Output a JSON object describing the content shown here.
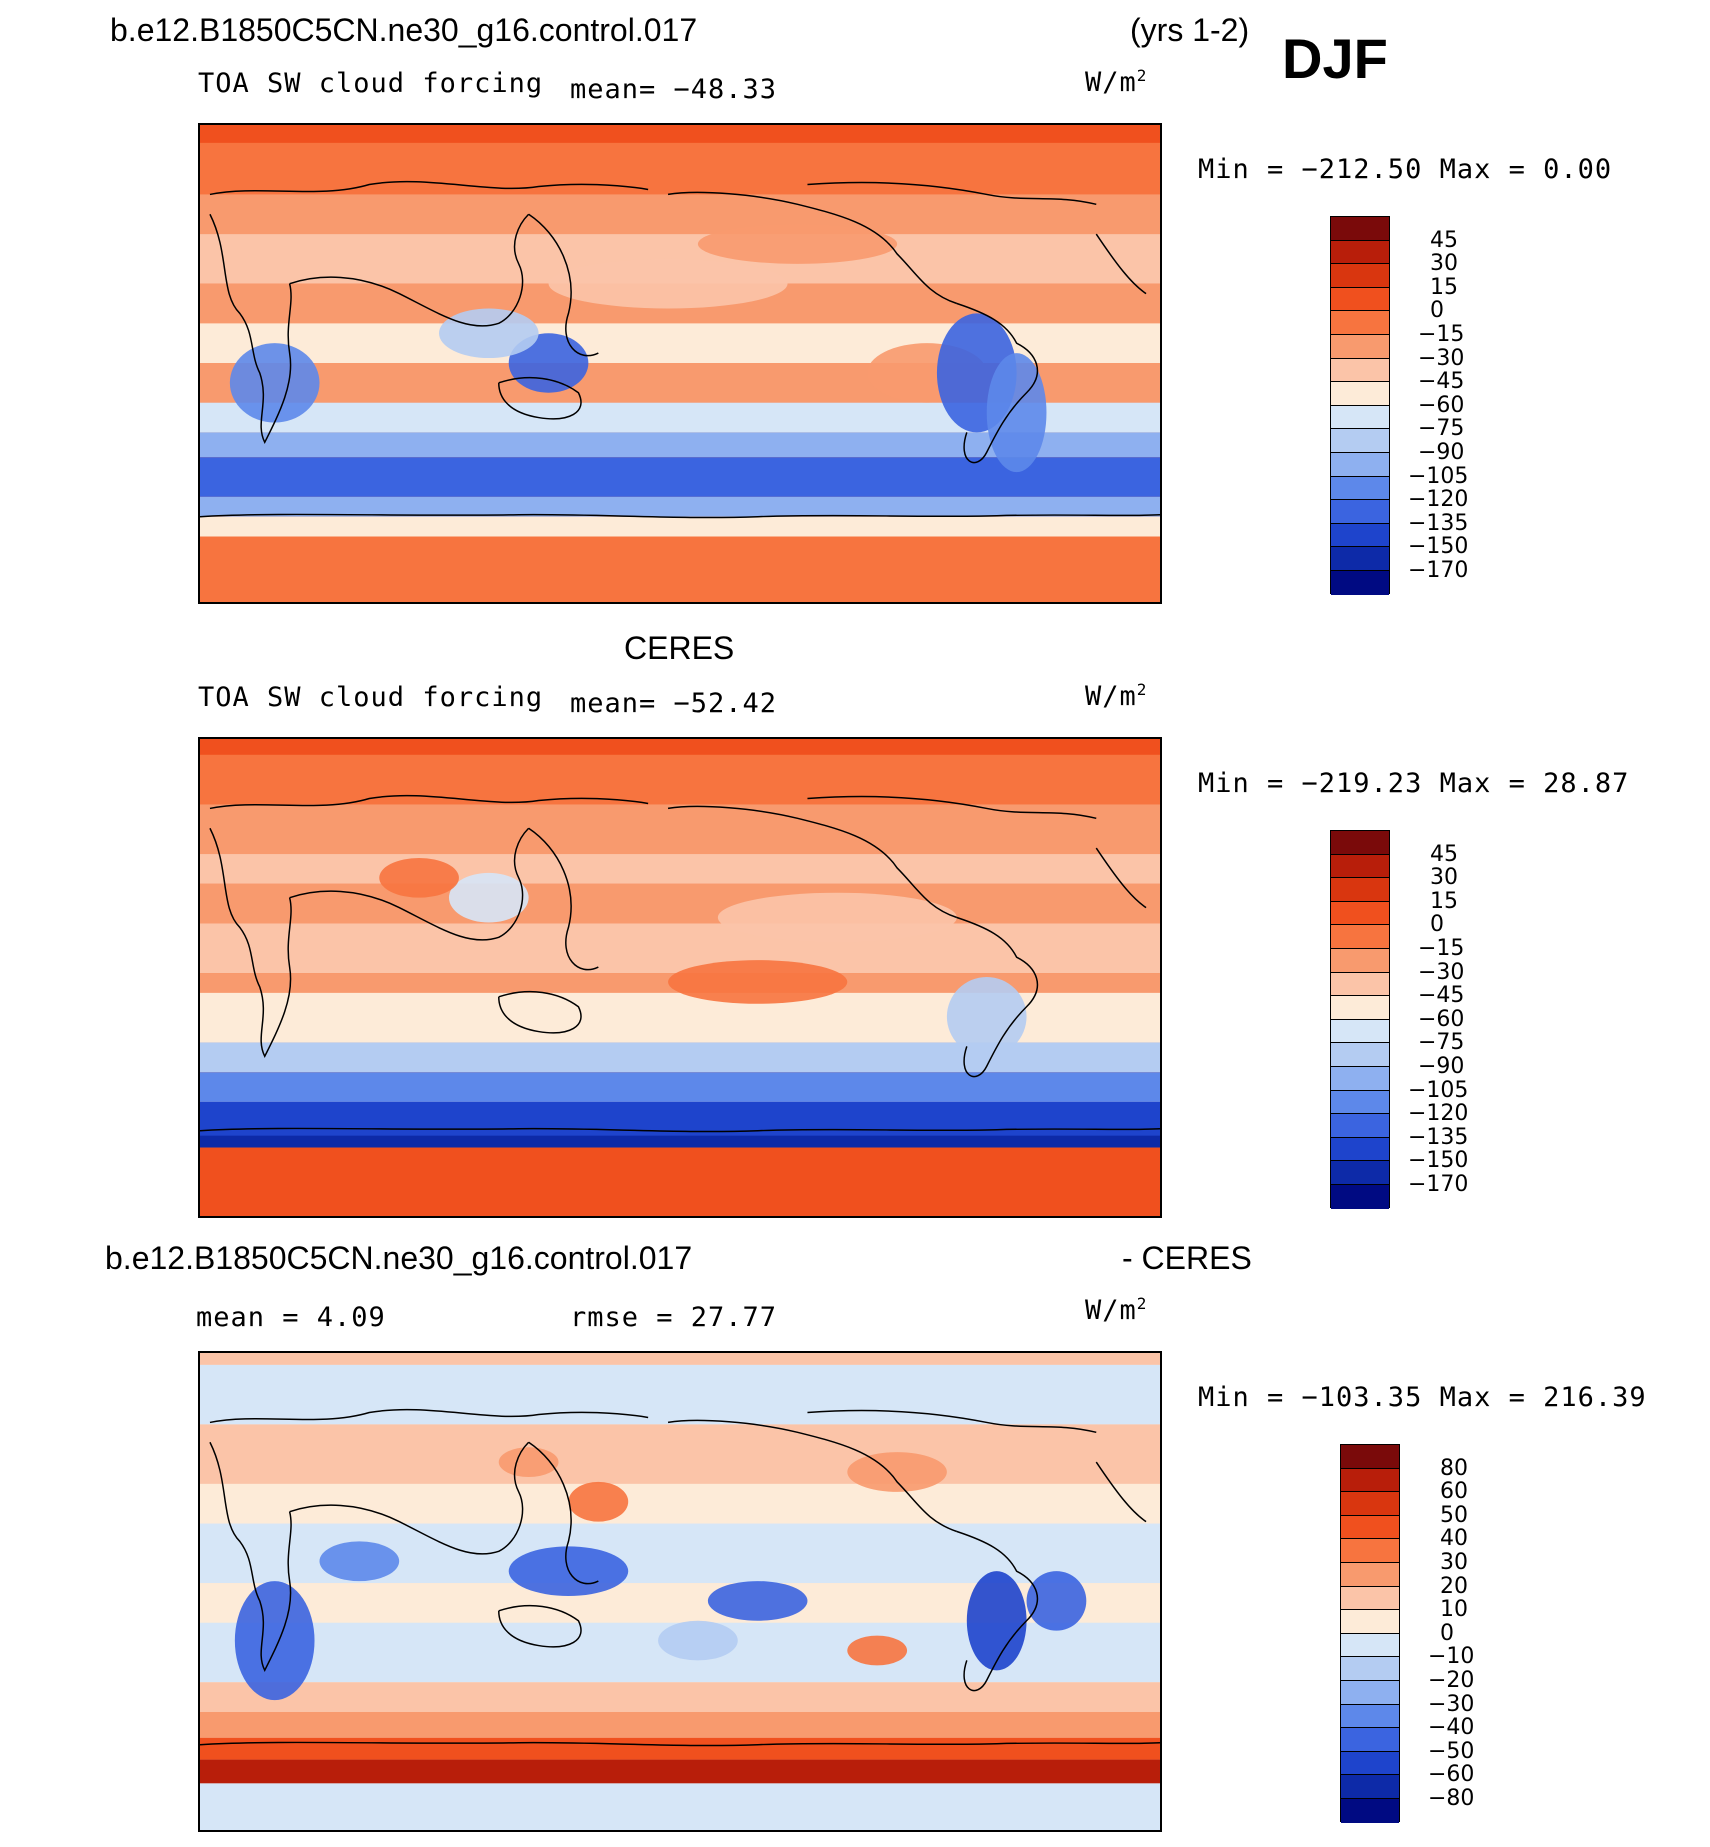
{
  "page": {
    "case_name": "b.e12.B1850C5CN.ne30_g16.control.017",
    "years": "(yrs 1-2)",
    "season": "DJF",
    "obs_title": "CERES",
    "diff_case_name": "b.e12.B1850C5CN.ne30_g16.control.017",
    "diff_suffix": "- CERES"
  },
  "panels": [
    {
      "variable": "TOA SW cloud forcing",
      "mean_text": "mean= −48.33",
      "units_base": "W/m",
      "units_exp": "2",
      "minmax_text": "Min = −212.50 Max =   0.00",
      "map_field": "model",
      "colorbar": {
        "labels": [
          "45",
          "30",
          "15",
          "0",
          "−15",
          "−30",
          "−45",
          "−60",
          "−75",
          "−90",
          "−105",
          "−120",
          "−135",
          "−150",
          "−170"
        ],
        "colors": [
          "#7a0a0a",
          "#b81e0a",
          "#d9360f",
          "#f0501e",
          "#f7743f",
          "#f89a6e",
          "#fbc4a8",
          "#fdebd8",
          "#d6e6f7",
          "#b4ccf2",
          "#8eb0f0",
          "#5d88ea",
          "#3b64e0",
          "#1e44cc",
          "#0d2aa8",
          "#000a82"
        ]
      }
    },
    {
      "variable": "TOA SW cloud forcing",
      "mean_text": "mean= −52.42",
      "units_base": "W/m",
      "units_exp": "2",
      "minmax_text": "Min = −219.23 Max =  28.87",
      "map_field": "obs",
      "colorbar": {
        "labels": [
          "45",
          "30",
          "15",
          "0",
          "−15",
          "−30",
          "−45",
          "−60",
          "−75",
          "−90",
          "−105",
          "−120",
          "−135",
          "−150",
          "−170"
        ],
        "colors": [
          "#7a0a0a",
          "#b81e0a",
          "#d9360f",
          "#f0501e",
          "#f7743f",
          "#f89a6e",
          "#fbc4a8",
          "#fdebd8",
          "#d6e6f7",
          "#b4ccf2",
          "#8eb0f0",
          "#5d88ea",
          "#3b64e0",
          "#1e44cc",
          "#0d2aa8",
          "#000a82"
        ]
      }
    },
    {
      "mean_text": "mean =    4.09",
      "rmse_text": "rmse =   27.77",
      "units_base": "W/m",
      "units_exp": "2",
      "minmax_text": "Min = −103.35 Max = 216.39",
      "map_field": "diff",
      "colorbar": {
        "labels": [
          "80",
          "60",
          "50",
          "40",
          "30",
          "20",
          "10",
          "0",
          "−10",
          "−20",
          "−30",
          "−40",
          "−50",
          "−60",
          "−80"
        ],
        "colors": [
          "#7a0a0a",
          "#b81e0a",
          "#d9360f",
          "#f0501e",
          "#f7743f",
          "#f89a6e",
          "#fbc4a8",
          "#fdebd8",
          "#d6e6f7",
          "#b4ccf2",
          "#8eb0f0",
          "#5d88ea",
          "#3b64e0",
          "#1e44cc",
          "#0d2aa8",
          "#000a82"
        ]
      }
    }
  ]
}
